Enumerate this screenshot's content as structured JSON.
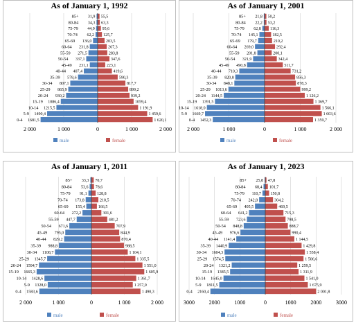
{
  "colors": {
    "male": "#4f81bd",
    "female": "#c0504d",
    "grid": "#d0d0d0",
    "axis": "#404040"
  },
  "chart_data": [
    {
      "type": "bar",
      "title": "As of January 1, 1992",
      "orientation": "horizontal-pyramid",
      "categories": [
        "85+",
        "80-84",
        "75-79",
        "70-74",
        "65-69",
        "60-64",
        "55-59",
        "50-54",
        "45-49",
        "40-44",
        "35-39",
        "30-34",
        "25-29",
        "20-24",
        "15-19",
        "10-14",
        "5-9",
        "0-4"
      ],
      "series": [
        {
          "name": "male",
          "values": [
            31.9,
            34.3,
            44.9,
            62.2,
            136.0,
            231.8,
            271.5,
            337.1,
            231.1,
            407.4,
            578.6,
            807.1,
            865.9,
            930.2,
            1086.4,
            1215.5,
            1490.4,
            1681.5
          ],
          "labels": [
            "31,9",
            "34,3",
            "44,9",
            "62,2",
            "136,0",
            "231,8",
            "271,5",
            "337,1",
            "231,1",
            "407,4",
            "578,6",
            "807,1",
            "865,9",
            "930,2",
            "1086,4",
            "1215,5",
            "1490,4",
            "1681,5"
          ]
        },
        {
          "name": "female",
          "values": [
            55.5,
            63.3,
            95.6,
            125.7,
            203.5,
            267.3,
            283.8,
            347.6,
            223.1,
            419.6,
            590.3,
            817.7,
            899.2,
            939.2,
            1059.4,
            1191.9,
            1459.6,
            1620.1
          ],
          "labels": [
            "55,5",
            "63,3",
            "95,6",
            "125,7",
            "203,5",
            "267,3",
            "283,8",
            "347,6",
            "223,1",
            "419,6",
            "590,3",
            "817,7",
            "899,2",
            "939,2",
            "1059,4",
            "1 191,9",
            "1 459,6",
            "1 620,1"
          ]
        }
      ],
      "xlim": [
        -2000,
        2000
      ],
      "xticks": [
        -2000,
        -1000,
        0,
        1000,
        2000
      ],
      "xtick_labels": [
        "2 000",
        "1 000",
        "0",
        "1 000",
        "2 000"
      ],
      "legend": [
        "male",
        "female"
      ],
      "legend_position": "bottom"
    },
    {
      "type": "bar",
      "title": "As of January 1, 2001",
      "orientation": "horizontal-pyramid",
      "categories": [
        "85+",
        "80-84",
        "75-79",
        "70-74",
        "65-69",
        "60-64",
        "55-59",
        "50-54",
        "45-49",
        "40-44",
        "35-39",
        "30-34",
        "25-29",
        "20-24",
        "15-19",
        "10-14",
        "5-9",
        "0-4"
      ],
      "series": [
        {
          "name": "male",
          "values": [
            21.8,
            22.2,
            62.8,
            145.1,
            179.7,
            269.0,
            201.8,
            321.9,
            490.8,
            710.3,
            820.8,
            848.1,
            1013.6,
            1144.5,
            1391.5,
            1618.0,
            1669.7,
            1452.3
          ],
          "labels": [
            "21,8",
            "22,2",
            "62,8",
            "145,1",
            "179,7",
            "269,0",
            "201,8",
            "321,9",
            "490,8",
            "710,3",
            "820,8",
            "848,1",
            "1013,6",
            "1144,5",
            "1391,5",
            "1618,0",
            "1669,7",
            "1452,3"
          ]
        },
        {
          "name": "female",
          "values": [
            50.2,
            53.2,
            116.3,
            182.5,
            210.2,
            292.4,
            200.1,
            342.4,
            511.7,
            731.2,
            856.3,
            878.3,
            999.2,
            1126.2,
            1369.7,
            1566.1,
            1603.6,
            1359.7
          ],
          "labels": [
            "50,2",
            "53,2",
            "116,3",
            "182,5",
            "210,2",
            "292,4",
            "200,1",
            "342,4",
            "511,7",
            "731,2",
            "856,3",
            "878,3",
            "999,2",
            "1 126,2",
            "1 369,7",
            "1 566,1",
            "1 603,6",
            "1 359,7"
          ]
        }
      ],
      "xlim": [
        -2000,
        2000
      ],
      "xticks": [
        -2000,
        -1000,
        0,
        1000,
        2000
      ],
      "xtick_labels": [
        "2 000",
        "1 000",
        "0",
        "1 000",
        "2 000"
      ],
      "legend": [
        "male",
        "female"
      ],
      "legend_position": "bottom"
    },
    {
      "type": "bar",
      "title": "As of January 1, 2011",
      "orientation": "horizontal-pyramid",
      "categories": [
        "85+",
        "80-84",
        "75-79",
        "70-74",
        "65-69",
        "60-64",
        "55-59",
        "50-54",
        "45-49",
        "40-44",
        "35-39",
        "30-34",
        "25-29",
        "20-24",
        "15-19",
        "10-14",
        "5-9",
        "0-4"
      ],
      "series": [
        {
          "name": "male",
          "values": [
            33.3,
            53.6,
            91.1,
            173.8,
            155.4,
            272.2,
            447.7,
            671.6,
            795.0,
            829.2,
            988.8,
            1108.7,
            1345.7,
            1594.7,
            1665.3,
            1428.6,
            1328.0,
            1583.6
          ],
          "labels": [
            "33,3",
            "53,6",
            "91,1",
            "173,8",
            "155,4",
            "272,2",
            "447,7",
            "671,6",
            "795,0",
            "829,2",
            "988,8",
            "1108,7",
            "1345,7",
            "1594,7",
            "1665,3",
            "1428,6",
            "1328,0",
            "1583,6"
          ]
        },
        {
          "name": "female",
          "values": [
            70.7,
            78.6,
            128.8,
            210.5,
            166.5,
            301.6,
            481.2,
            707.9,
            844.9,
            870.4,
            988.5,
            1104.1,
            1335.5,
            1551.0,
            1605.9,
            1361.7,
            1257.0,
            1490.3
          ],
          "labels": [
            "70,7",
            "78,6",
            "128,8",
            "210,5",
            "166,5",
            "301,6",
            "481,2",
            "707,9",
            "844,9",
            "870,4",
            "988,5",
            "1 104,1",
            "1 335,5",
            "1 551,0",
            "1 605,9",
            "1 361,7",
            "1 257,0",
            "1 490,3"
          ]
        }
      ],
      "xlim": [
        -2000,
        2000
      ],
      "xticks": [
        -2000,
        -1000,
        0,
        1000,
        2000
      ],
      "xtick_labels": [
        "2 000",
        "1 000",
        "0",
        "1 000",
        "2 000"
      ],
      "legend": [
        "male",
        "female"
      ],
      "legend_position": "bottom"
    },
    {
      "type": "bar",
      "title": "As of January 1, 2023",
      "orientation": "horizontal-pyramid",
      "categories": [
        "85+",
        "80-84",
        "75-79",
        "70-74",
        "65-69",
        "60-64",
        "55-59",
        "50-54",
        "45-49",
        "40-44",
        "35-39",
        "30-34",
        "25-29",
        "20-24",
        "15-19",
        "10-14",
        "5-9",
        "0-4"
      ],
      "series": [
        {
          "name": "male",
          "values": [
            25.8,
            68.4,
            110.7,
            242.8,
            405.5,
            641.2,
            723.6,
            848.8,
            976.6,
            1141.4,
            1440.9,
            1604.3,
            1574.5,
            1321.2,
            1385.5,
            1645.0,
            1811.5,
            2160.4
          ],
          "labels": [
            "25,8",
            "68,4",
            "110,7",
            "242,8",
            "405,5",
            "641,2",
            "723,6",
            "848,8",
            "976,6",
            "1141,4",
            "1440,9",
            "1604,3",
            "1574,5",
            "1321,2",
            "1385,5",
            "1645,0",
            "1811,5",
            "2160,4"
          ]
        },
        {
          "name": "female",
          "values": [
            47.8,
            101.7,
            150.8,
            304.2,
            469.5,
            715.3,
            798.5,
            888.7,
            990.4,
            1144.5,
            1429.8,
            1558.4,
            1506.6,
            1259.5,
            1311.9,
            1541.0,
            1675.9,
            2001.8
          ],
          "labels": [
            "47,8",
            "101,7",
            "150,8",
            "304,2",
            "469,5",
            "715,3",
            "798,5",
            "888,7",
            "990,4",
            "1 144,5",
            "1 429,8",
            "1 558,4",
            "1 506,6",
            "1 259,5",
            "1 311,9",
            "1 541,0",
            "1 675,9",
            "2 001,8"
          ]
        }
      ],
      "xlim": [
        -3000,
        3000
      ],
      "xticks": [
        -3000,
        -2000,
        -1000,
        0,
        1000,
        2000,
        3000
      ],
      "xtick_labels": [
        "3000",
        "2000",
        "1000",
        "0",
        "1000",
        "2000",
        "3000"
      ],
      "legend": [
        "male",
        "female"
      ],
      "legend_position": "bottom"
    }
  ]
}
